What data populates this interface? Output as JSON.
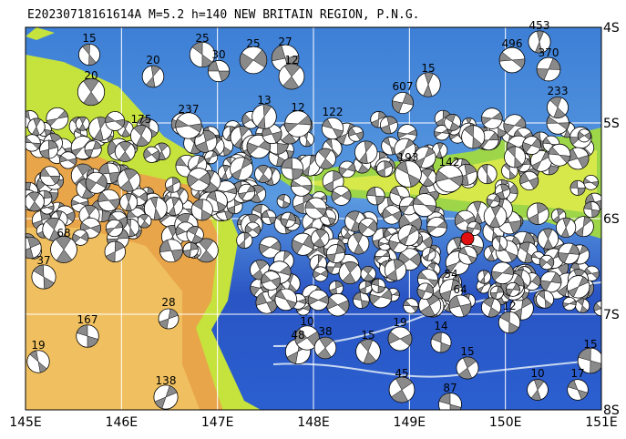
{
  "header": {
    "title": "E20230718161614A M=5.2 h=140 NEW BRITAIN REGION, P.N.G."
  },
  "axes": {
    "lon_labels": [
      "145E",
      "146E",
      "147E",
      "148E",
      "149E",
      "150E",
      "151E"
    ],
    "lat_labels": [
      "4S",
      "5S",
      "6S",
      "7S",
      "8S"
    ]
  },
  "events": [
    {
      "label": "15"
    },
    {
      "label": "25"
    },
    {
      "label": "20"
    },
    {
      "label": "30"
    },
    {
      "label": "25"
    },
    {
      "label": "27"
    },
    {
      "label": "12"
    },
    {
      "label": "20"
    },
    {
      "label": "237"
    },
    {
      "label": "13"
    },
    {
      "label": "12"
    },
    {
      "label": "122"
    },
    {
      "label": "15"
    },
    {
      "label": "607"
    },
    {
      "label": "453"
    },
    {
      "label": "496"
    },
    {
      "label": "370"
    },
    {
      "label": "233"
    },
    {
      "label": "175"
    },
    {
      "label": "37"
    },
    {
      "label": "68"
    },
    {
      "label": "167"
    },
    {
      "label": "19"
    },
    {
      "label": "28"
    },
    {
      "label": "138"
    },
    {
      "label": "48"
    },
    {
      "label": "10"
    },
    {
      "label": "38"
    },
    {
      "label": "15"
    },
    {
      "label": "19"
    },
    {
      "label": "14"
    },
    {
      "label": "15"
    },
    {
      "label": "45"
    },
    {
      "label": "87"
    },
    {
      "label": "10"
    },
    {
      "label": "17"
    },
    {
      "label": "12"
    },
    {
      "label": "15"
    },
    {
      "label": "54"
    },
    {
      "label": "64"
    },
    {
      "label": "142"
    },
    {
      "label": "193"
    }
  ]
}
